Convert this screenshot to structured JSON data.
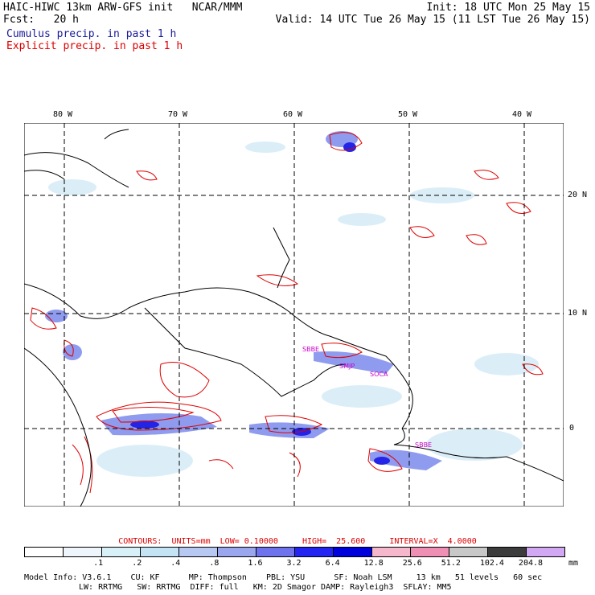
{
  "header": {
    "title": "HAIC-HIWC 13km ARW-GFS init   NCAR/MMM",
    "fcst": "Fcst:   20 h",
    "init": "Init: 18 UTC Mon 25 May 15",
    "valid": "Valid: 14 UTC Tue 26 May 15 (11 LST Tue 26 May 15)",
    "cumulus": "Cumulus precip. in past 1 h",
    "explicit": "Explicit precip. in past 1 h"
  },
  "axes": {
    "lon_labels": [
      "80 W",
      "70 W",
      "60 W",
      "50 W",
      "40 W"
    ],
    "lat_labels": [
      "20 N",
      "10 N",
      "0"
    ]
  },
  "markers": [
    "SBBE",
    "SMJP",
    "SOCA",
    "SBBE"
  ],
  "contours_text": "CONTOURS:  UNITS=mm  LOW= 0.10000     HIGH=  25.600     INTERVAL=X  4.0000",
  "colorbar": {
    "ticks": [
      ".1",
      ".2",
      ".4",
      ".8",
      "1.6",
      "3.2",
      "6.4",
      "12.8",
      "25.6",
      "51.2",
      "102.4",
      "204.8"
    ],
    "colors": [
      "#ffffff",
      "#eef6fb",
      "#d8f0f7",
      "#c4e4f5",
      "#b7c8f2",
      "#9aa6ee",
      "#6e72ec",
      "#2323f2",
      "#0000dd",
      "#f5b7cb",
      "#f08fb4",
      "#c8c8c8",
      "#3c3c3c",
      "#d2a8f2"
    ],
    "unit": "mm"
  },
  "footer": {
    "line1": "Model Info: V3.6.1    CU: KF      MP: Thompson    PBL: YSU      SF: Noah LSM     13 km   51 levels   60 sec",
    "line2": "LW: RRTMG   SW: RRTMG  DIFF: full   KM: 2D Smagor DAMP: Rayleigh3  SFLAY: MM5"
  }
}
